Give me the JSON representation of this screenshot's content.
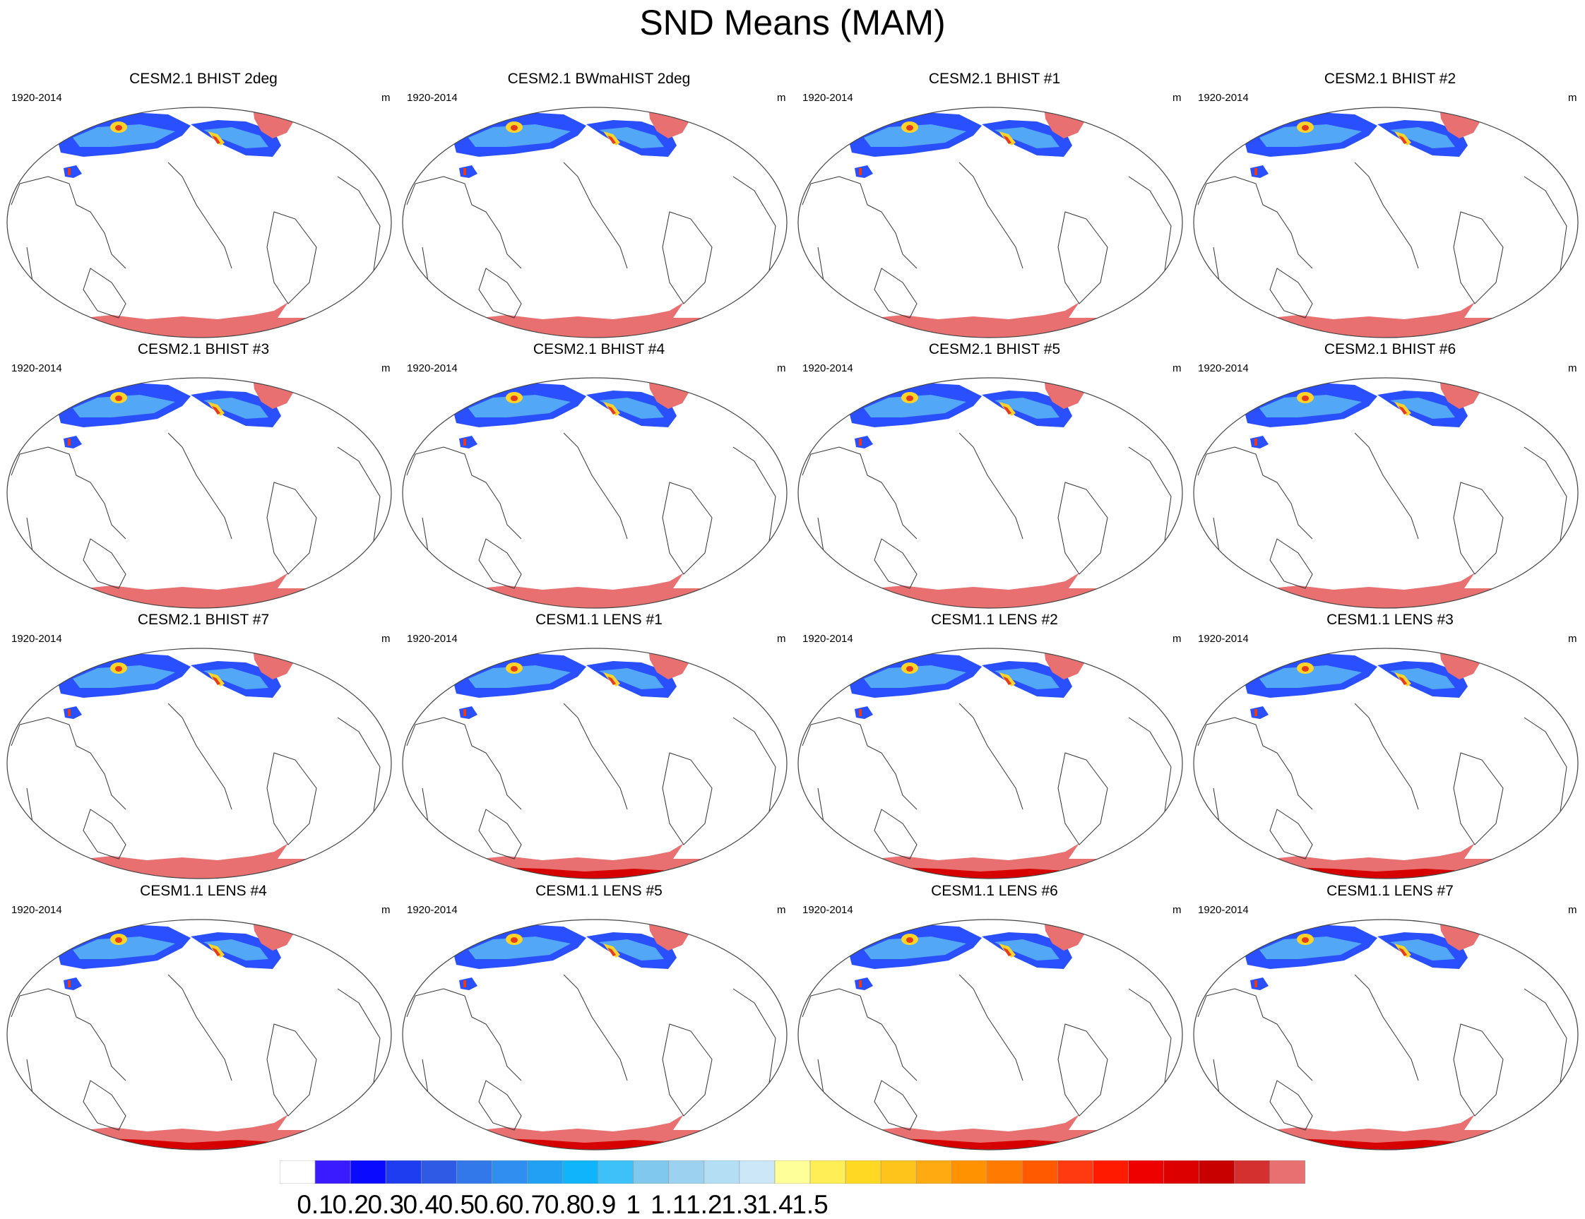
{
  "figure": {
    "title": "SND Means (MAM)",
    "period_label": "1920-2014",
    "units_label": "m",
    "panels": [
      {
        "title": "CESM2.1 BHIST 2deg",
        "antarctic": "uniform"
      },
      {
        "title": "CESM2.1 BWmaHIST 2deg",
        "antarctic": "uniform"
      },
      {
        "title": "CESM2.1 BHIST #1",
        "antarctic": "uniform"
      },
      {
        "title": "CESM2.1 BHIST #2",
        "antarctic": "uniform"
      },
      {
        "title": "CESM2.1 BHIST #3",
        "antarctic": "uniform"
      },
      {
        "title": "CESM2.1 BHIST #4",
        "antarctic": "uniform"
      },
      {
        "title": "CESM2.1 BHIST #5",
        "antarctic": "uniform"
      },
      {
        "title": "CESM2.1 BHIST #6",
        "antarctic": "uniform"
      },
      {
        "title": "CESM2.1 BHIST #7",
        "antarctic": "uniform"
      },
      {
        "title": "CESM1.1 LENS #1",
        "antarctic": "deep-red"
      },
      {
        "title": "CESM1.1 LENS #2",
        "antarctic": "deep-red"
      },
      {
        "title": "CESM1.1 LENS #3",
        "antarctic": "deep-red"
      },
      {
        "title": "CESM1.1 LENS #4",
        "antarctic": "deep-red"
      },
      {
        "title": "CESM1.1 LENS #5",
        "antarctic": "deep-red"
      },
      {
        "title": "CESM1.1 LENS #6",
        "antarctic": "deep-red"
      },
      {
        "title": "CESM1.1 LENS #7",
        "antarctic": "deep-red"
      }
    ]
  },
  "colorbar": {
    "labels": [
      "0.1",
      "0.2",
      "0.3",
      "0.4",
      "0.5",
      "0.6",
      "0.7",
      "0.8",
      "0.9",
      "1",
      "1.1",
      "1.2",
      "1.3",
      "1.4",
      "1.5"
    ],
    "colors": [
      "#ffffff",
      "#3a1aff",
      "#0a0aff",
      "#1e3cf0",
      "#2e5ae6",
      "#3278ea",
      "#2f8ef0",
      "#21a0f4",
      "#10b4fa",
      "#3ec0f8",
      "#80c8ee",
      "#9cd2f0",
      "#b4def4",
      "#cce8f8",
      "#ffff99",
      "#ffee55",
      "#ffd824",
      "#ffc41c",
      "#ffaa10",
      "#ff9200",
      "#ff7a00",
      "#ff5a00",
      "#ff3a10",
      "#ff1a00",
      "#ee0000",
      "#dd0000",
      "#c80000",
      "#d43030",
      "#e87070"
    ]
  },
  "map_colors": {
    "low": "#2a4fff",
    "mid": "#52a8f6",
    "high": "#ffd42a",
    "peak": "#e63c1e",
    "saturated": "#e87070",
    "deep": "#d60000",
    "coast": "#333333"
  }
}
